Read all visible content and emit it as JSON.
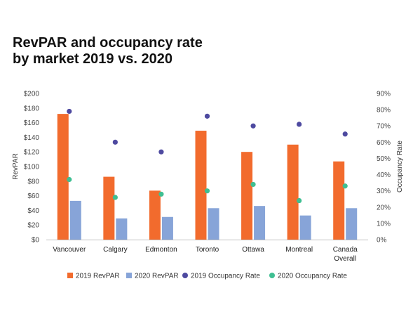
{
  "chart_data": {
    "type": "bar",
    "title_lines": [
      "RevPAR and occupancy rate",
      "by market 2019 vs. 2020"
    ],
    "categories": [
      [
        "Vancouver"
      ],
      [
        "Calgary"
      ],
      [
        "Edmonton"
      ],
      [
        "Toronto"
      ],
      [
        "Ottawa"
      ],
      [
        "Montreal"
      ],
      [
        "Canada",
        "Overall"
      ]
    ],
    "series": [
      {
        "name": "2019 RevPAR",
        "kind": "bar",
        "axis": "left",
        "color": "#f26b2d",
        "values": [
          172,
          86,
          67,
          149,
          120,
          130,
          107
        ]
      },
      {
        "name": "2020 RevPAR",
        "kind": "bar",
        "axis": "left",
        "color": "#87a4d8",
        "values": [
          53,
          29,
          31,
          43,
          46,
          33,
          43
        ]
      },
      {
        "name": "2019 Occupancy Rate",
        "kind": "scatter",
        "axis": "right",
        "color": "#4e4aa0",
        "values": [
          79,
          60,
          54,
          76,
          70,
          71,
          65
        ]
      },
      {
        "name": "2020 Occupancy Rate",
        "kind": "scatter",
        "axis": "right",
        "color": "#3fbf92",
        "values": [
          37,
          26,
          28,
          30,
          34,
          24,
          33
        ]
      }
    ],
    "ylabel": "RevPAR",
    "y2label": "Occupancy Rate",
    "ylim": [
      0,
      200
    ],
    "y2lim": [
      0,
      90
    ],
    "yticks": [
      "$0",
      "$20",
      "$40",
      "$60",
      "$80",
      "$100",
      "$120",
      "$140",
      "$160",
      "$180",
      "$200"
    ],
    "y2ticks": [
      "0%",
      "10%",
      "20%",
      "30%",
      "40%",
      "50%",
      "60%",
      "70%",
      "80%",
      "90%"
    ],
    "grid": false,
    "legend_position": "bottom"
  }
}
